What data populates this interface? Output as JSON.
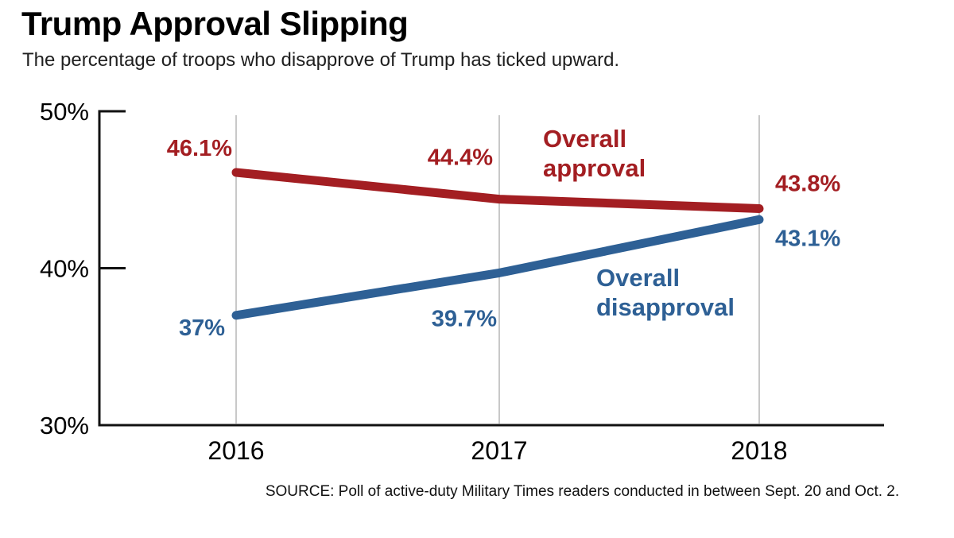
{
  "header": {
    "title": "Trump Approval Slipping",
    "subtitle": "The percentage of troops who disapprove of Trump has ticked upward."
  },
  "chart_data": {
    "type": "line",
    "x": [
      "2016",
      "2017",
      "2018"
    ],
    "series": [
      {
        "name": "Overall approval",
        "values": [
          46.1,
          44.4,
          43.8
        ],
        "labels": [
          "46.1%",
          "44.4%",
          "43.8%"
        ],
        "color": "#a31e22"
      },
      {
        "name": "Overall disapproval",
        "values": [
          37,
          39.7,
          43.1
        ],
        "labels": [
          "37%",
          "39.7%",
          "43.1%"
        ],
        "color": "#2e6095"
      }
    ],
    "ylim": [
      30,
      50
    ],
    "yticks": [
      30,
      40,
      50
    ],
    "ytick_labels": [
      "30%",
      "40%",
      "50%"
    ],
    "grid": "vertical",
    "legend_position": "inline-annotations"
  },
  "source": "SOURCE: Poll of active-duty Military Times readers conducted in between Sept. 20 and Oct. 2."
}
